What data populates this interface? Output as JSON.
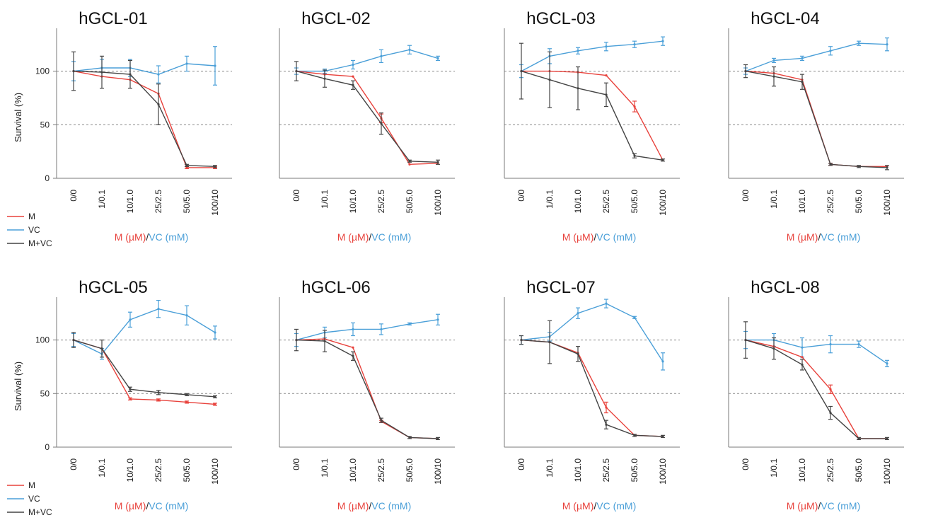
{
  "colors": {
    "M": "#e8423c",
    "VC": "#4a9fd8",
    "M+VC": "#444444",
    "axis": "#7a7a7a",
    "ref_line": "#8a8a8a"
  },
  "figure": {
    "ylabel": "Survival (%)",
    "ylabel_bottom_row": "Survival (%)",
    "xlabel_part1": "M (µM)",
    "xlabel_sep": "/",
    "xlabel_part2": "VC (mM)",
    "legend": [
      "M",
      "VC",
      "M+VC"
    ]
  },
  "chart_data": [
    {
      "type": "line",
      "title": "hGCL-01",
      "categories": [
        "0/0",
        "1/0.1",
        "10/1.0",
        "25/2.5",
        "50/5.0",
        "100/10"
      ],
      "ylim": [
        0,
        140
      ],
      "yticks": [
        0,
        50,
        100
      ],
      "reference_lines": [
        50,
        100
      ],
      "series": [
        {
          "name": "M",
          "values": [
            100,
            95,
            92,
            79,
            10,
            10
          ],
          "errors": [
            0,
            0,
            0,
            0,
            1,
            1
          ]
        },
        {
          "name": "VC",
          "values": [
            100,
            103,
            103,
            97,
            107,
            105
          ],
          "errors": [
            9,
            8,
            8,
            8,
            7,
            18
          ]
        },
        {
          "name": "M+VC",
          "values": [
            100,
            99,
            97,
            69,
            12,
            11
          ],
          "errors": [
            18,
            15,
            13,
            19,
            1,
            1
          ]
        }
      ]
    },
    {
      "type": "line",
      "title": "hGCL-02",
      "categories": [
        "0/0",
        "1/0.1",
        "10/1.0",
        "25/2.5",
        "50/5.0",
        "100/10"
      ],
      "ylim": [
        0,
        140
      ],
      "yticks": [],
      "reference_lines": [
        50,
        100
      ],
      "series": [
        {
          "name": "M",
          "values": [
            100,
            97,
            95,
            56,
            13,
            14
          ],
          "errors": [
            0,
            0,
            0,
            4,
            0,
            0
          ]
        },
        {
          "name": "VC",
          "values": [
            100,
            100,
            106,
            114,
            120,
            112
          ],
          "errors": [
            3,
            2,
            4,
            6,
            4,
            2
          ]
        },
        {
          "name": "M+VC",
          "values": [
            100,
            93,
            87,
            51,
            16,
            15
          ],
          "errors": [
            9,
            8,
            4,
            10,
            1,
            2
          ]
        }
      ]
    },
    {
      "type": "line",
      "title": "hGCL-03",
      "categories": [
        "0/0",
        "1/0.1",
        "10/1.0",
        "25/2.5",
        "50/5.0",
        "100/10"
      ],
      "ylim": [
        0,
        140
      ],
      "yticks": [],
      "reference_lines": [
        50,
        100
      ],
      "series": [
        {
          "name": "M",
          "values": [
            100,
            100,
            99,
            96,
            67,
            17
          ],
          "errors": [
            0,
            0,
            0,
            0,
            5,
            0
          ]
        },
        {
          "name": "VC",
          "values": [
            100,
            114,
            119,
            123,
            125,
            128
          ],
          "errors": [
            6,
            7,
            3,
            4,
            3,
            4
          ]
        },
        {
          "name": "M+VC",
          "values": [
            100,
            92,
            84,
            78,
            21,
            17
          ],
          "errors": [
            26,
            26,
            20,
            11,
            2,
            1
          ]
        }
      ]
    },
    {
      "type": "line",
      "title": "hGCL-04",
      "categories": [
        "0/0",
        "1/0.1",
        "10/1.0",
        "25/2.5",
        "50/5.0",
        "100/10"
      ],
      "ylim": [
        0,
        140
      ],
      "yticks": [],
      "reference_lines": [
        50,
        100
      ],
      "series": [
        {
          "name": "M",
          "values": [
            100,
            98,
            92,
            13,
            11,
            11
          ],
          "errors": [
            0,
            0,
            0,
            1,
            0,
            0
          ]
        },
        {
          "name": "VC",
          "values": [
            100,
            110,
            112,
            119,
            126,
            125
          ],
          "errors": [
            3,
            2,
            2,
            4,
            2,
            6
          ]
        },
        {
          "name": "M+VC",
          "values": [
            100,
            95,
            90,
            13,
            11,
            10
          ],
          "errors": [
            6,
            9,
            7,
            1,
            1,
            2
          ]
        }
      ]
    },
    {
      "type": "line",
      "title": "hGCL-05",
      "categories": [
        "0/0",
        "1/0.1",
        "10/1.0",
        "25/2.5",
        "50/5.0",
        "100/10"
      ],
      "ylim": [
        0,
        140
      ],
      "yticks": [
        0,
        50,
        100
      ],
      "reference_lines": [
        50,
        100
      ],
      "series": [
        {
          "name": "M",
          "values": [
            100,
            92,
            45,
            44,
            42,
            40
          ],
          "errors": [
            0,
            0,
            1,
            1,
            1,
            1
          ]
        },
        {
          "name": "VC",
          "values": [
            100,
            87,
            119,
            129,
            123,
            107
          ],
          "errors": [
            6,
            5,
            7,
            8,
            9,
            6
          ]
        },
        {
          "name": "M+VC",
          "values": [
            100,
            92,
            54,
            51,
            49,
            47
          ],
          "errors": [
            7,
            8,
            2,
            2,
            1,
            1
          ]
        }
      ]
    },
    {
      "type": "line",
      "title": "hGCL-06",
      "categories": [
        "0/0",
        "1/0.1",
        "10/1.0",
        "25/2.5",
        "50/5.0",
        "100/10"
      ],
      "ylim": [
        0,
        140
      ],
      "yticks": [],
      "reference_lines": [
        50,
        100
      ],
      "series": [
        {
          "name": "M",
          "values": [
            100,
            101,
            93,
            24,
            9,
            8
          ],
          "errors": [
            0,
            0,
            0,
            1,
            0,
            0
          ]
        },
        {
          "name": "VC",
          "values": [
            100,
            107,
            110,
            110,
            115,
            119
          ],
          "errors": [
            6,
            5,
            6,
            5,
            1,
            5
          ]
        },
        {
          "name": "M+VC",
          "values": [
            100,
            99,
            85,
            25,
            9,
            8
          ],
          "errors": [
            10,
            10,
            4,
            2,
            1,
            1
          ]
        }
      ]
    },
    {
      "type": "line",
      "title": "hGCL-07",
      "categories": [
        "0/0",
        "1/0.1",
        "10/1.0",
        "25/2.5",
        "50/5.0",
        "100/10"
      ],
      "ylim": [
        0,
        140
      ],
      "yticks": [],
      "reference_lines": [
        50,
        100
      ],
      "series": [
        {
          "name": "M",
          "values": [
            100,
            98,
            88,
            37,
            11,
            10
          ],
          "errors": [
            0,
            0,
            0,
            5,
            0,
            0
          ]
        },
        {
          "name": "VC",
          "values": [
            100,
            103,
            125,
            134,
            121,
            80
          ],
          "errors": [
            4,
            4,
            5,
            4,
            1,
            8
          ]
        },
        {
          "name": "M+VC",
          "values": [
            100,
            98,
            87,
            21,
            11,
            10
          ],
          "errors": [
            4,
            20,
            7,
            4,
            1,
            1
          ]
        }
      ]
    },
    {
      "type": "line",
      "title": "hGCL-08",
      "categories": [
        "0/0",
        "1/0.1",
        "10/1.0",
        "25/2.5",
        "50/5.0",
        "100/10"
      ],
      "ylim": [
        0,
        140
      ],
      "yticks": [],
      "reference_lines": [
        50,
        100
      ],
      "series": [
        {
          "name": "M",
          "values": [
            100,
            94,
            84,
            54,
            8,
            8
          ],
          "errors": [
            0,
            0,
            0,
            4,
            0,
            0
          ]
        },
        {
          "name": "VC",
          "values": [
            100,
            100,
            93,
            96,
            96,
            78
          ],
          "errors": [
            8,
            6,
            9,
            8,
            3,
            3
          ]
        },
        {
          "name": "M+VC",
          "values": [
            100,
            92,
            77,
            32,
            8,
            8
          ],
          "errors": [
            17,
            10,
            5,
            6,
            1,
            1
          ]
        }
      ]
    }
  ]
}
